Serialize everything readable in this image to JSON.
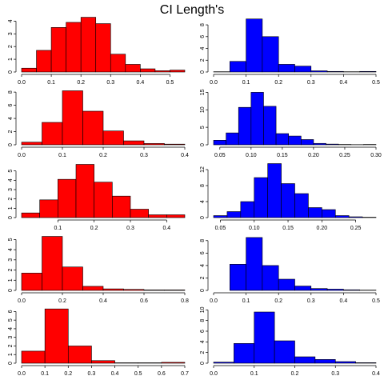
{
  "title": "CI Length's",
  "chart_data": [
    {
      "type": "histogram",
      "color": "#ff0000",
      "bins": [
        0,
        0.05,
        0.1,
        0.15,
        0.2,
        0.25,
        0.3,
        0.35,
        0.4,
        0.45,
        0.5,
        0.55
      ],
      "values": [
        0.3,
        1.7,
        3.5,
        3.9,
        4.3,
        3.8,
        1.4,
        0.6,
        0.25,
        0.1,
        0.15
      ],
      "xlim": [
        0,
        0.55
      ],
      "ylim": [
        0,
        4.4
      ],
      "xticks": [
        {
          "value": 0,
          "label": "0.0"
        },
        0.1,
        0.2,
        0.3,
        0.4,
        0.5
      ],
      "yticks": [
        0,
        1,
        2,
        3,
        4
      ]
    },
    {
      "type": "histogram",
      "color": "#0000ff",
      "bins": [
        0,
        0.05,
        0.1,
        0.15,
        0.2,
        0.25,
        0.3,
        0.35,
        0.4,
        0.45,
        0.5
      ],
      "values": [
        0.05,
        1.8,
        9,
        6,
        1.3,
        1,
        0.2,
        0.1,
        0.05,
        0.1
      ],
      "xlim": [
        0,
        0.5
      ],
      "ylim": [
        0,
        9.5
      ],
      "xticks": [
        {
          "value": 0,
          "label": "0.0"
        },
        0.1,
        0.2,
        0.3,
        0.4,
        0.5
      ],
      "yticks": [
        0,
        2,
        4,
        6,
        8
      ]
    },
    {
      "type": "histogram",
      "color": "#ff0000",
      "bins": [
        0,
        0.05,
        0.1,
        0.15,
        0.2,
        0.25,
        0.3,
        0.35,
        0.4
      ],
      "values": [
        0.4,
        3.4,
        8.2,
        5.1,
        2.1,
        0.6,
        0.2,
        0.1
      ],
      "xlim": [
        0,
        0.4
      ],
      "ylim": [
        0,
        8.5
      ],
      "xticks": [
        {
          "value": 0,
          "label": "0.0"
        },
        0.1,
        0.2,
        0.3,
        0.4
      ],
      "yticks": [
        0,
        2,
        4,
        6,
        8
      ]
    },
    {
      "type": "histogram",
      "color": "#0000ff",
      "bins": [
        0.04,
        0.06,
        0.08,
        0.1,
        0.12,
        0.14,
        0.16,
        0.18,
        0.2,
        0.22,
        0.24,
        0.26,
        0.28,
        0.3
      ],
      "values": [
        1.3,
        3.4,
        10.7,
        15,
        11,
        3.2,
        2.5,
        1.5,
        0.4,
        0.2,
        0.1,
        0.05,
        0.1
      ],
      "xlim": [
        0.04,
        0.3
      ],
      "ylim": [
        0,
        16
      ],
      "xticks": [
        0.05,
        {
          "value": 0.1,
          "label": "0.10"
        },
        0.15,
        {
          "value": 0.2,
          "label": "0.20"
        },
        0.25,
        {
          "value": 0.3,
          "label": "0.30"
        }
      ],
      "yticks": [
        0,
        5,
        10,
        15
      ]
    },
    {
      "type": "histogram",
      "color": "#ff0000",
      "bins": [
        0,
        0.05,
        0.1,
        0.15,
        0.2,
        0.25,
        0.3,
        0.35,
        0.4,
        0.45
      ],
      "values": [
        0.5,
        1.9,
        4.1,
        5.7,
        3.8,
        2.3,
        0.9,
        0.3,
        0.3
      ],
      "xlim": [
        0,
        0.45
      ],
      "ylim": [
        0,
        6
      ],
      "xticks": [
        0.1,
        0.2,
        0.3,
        0.4
      ],
      "yticks": [
        0,
        1,
        2,
        3,
        4,
        5
      ]
    },
    {
      "type": "histogram",
      "color": "#0000ff",
      "bins": [
        0.04,
        0.06,
        0.08,
        0.1,
        0.12,
        0.14,
        0.16,
        0.18,
        0.2,
        0.22,
        0.24,
        0.26,
        0.28
      ],
      "values": [
        0.5,
        1.5,
        4,
        10,
        13.5,
        8.5,
        6,
        2.5,
        2,
        0.5,
        0.2,
        0.1
      ],
      "xlim": [
        0.04,
        0.28
      ],
      "ylim": [
        0,
        14
      ],
      "xticks": [
        0.05,
        {
          "value": 0.1,
          "label": "0.10"
        },
        0.15,
        {
          "value": 0.2,
          "label": "0.20"
        },
        0.25
      ],
      "yticks": [
        0,
        4,
        8,
        12
      ]
    },
    {
      "type": "histogram",
      "color": "#ff0000",
      "bins": [
        0,
        0.1,
        0.2,
        0.3,
        0.4,
        0.5,
        0.6,
        0.7,
        0.8
      ],
      "values": [
        1.7,
        5.3,
        2.3,
        0.4,
        0.15,
        0.1,
        0.05,
        0.05
      ],
      "xlim": [
        0,
        0.8
      ],
      "ylim": [
        0,
        5.5
      ],
      "xticks": [
        {
          "value": 0,
          "label": "0.0"
        },
        0.2,
        0.4,
        0.6,
        0.8
      ],
      "yticks": [
        0,
        1,
        2,
        3,
        4,
        5
      ]
    },
    {
      "type": "histogram",
      "color": "#0000ff",
      "bins": [
        0,
        0.05,
        0.1,
        0.15,
        0.2,
        0.25,
        0.3,
        0.35,
        0.4,
        0.45,
        0.5
      ],
      "values": [
        0,
        4.2,
        8.5,
        4,
        1.8,
        0.7,
        0.3,
        0.2,
        0.1,
        0.05
      ],
      "xlim": [
        0,
        0.5
      ],
      "ylim": [
        0,
        9
      ],
      "xticks": [
        {
          "value": 0,
          "label": "0.0"
        },
        0.1,
        0.2,
        0.3,
        0.4,
        0.5
      ],
      "yticks": [
        0,
        2,
        4,
        6,
        8
      ]
    },
    {
      "type": "histogram",
      "color": "#ff0000",
      "bins": [
        0,
        0.1,
        0.2,
        0.3,
        0.4,
        0.5,
        0.6,
        0.7
      ],
      "values": [
        1.4,
        6.3,
        2,
        0.3,
        0.05,
        0.05,
        0.1
      ],
      "xlim": [
        0,
        0.7
      ],
      "ylim": [
        0,
        6.5
      ],
      "xticks": [
        {
          "value": 0,
          "label": "0.0"
        },
        0.1,
        0.2,
        0.3,
        0.4,
        0.5,
        0.6,
        0.7
      ],
      "yticks": [
        0,
        1,
        2,
        3,
        4,
        5,
        6
      ]
    },
    {
      "type": "histogram",
      "color": "#0000ff",
      "bins": [
        0,
        0.05,
        0.1,
        0.15,
        0.2,
        0.25,
        0.3,
        0.35,
        0.4
      ],
      "values": [
        0.2,
        3.7,
        9.6,
        4.2,
        1.2,
        0.7,
        0.3,
        0.1
      ],
      "xlim": [
        0,
        0.4
      ],
      "ylim": [
        0,
        10.5
      ],
      "xticks": [
        {
          "value": 0,
          "label": "0.0"
        },
        0.1,
        0.2,
        0.3,
        0.4
      ],
      "yticks": [
        0,
        2,
        4,
        6,
        8,
        10
      ]
    }
  ]
}
